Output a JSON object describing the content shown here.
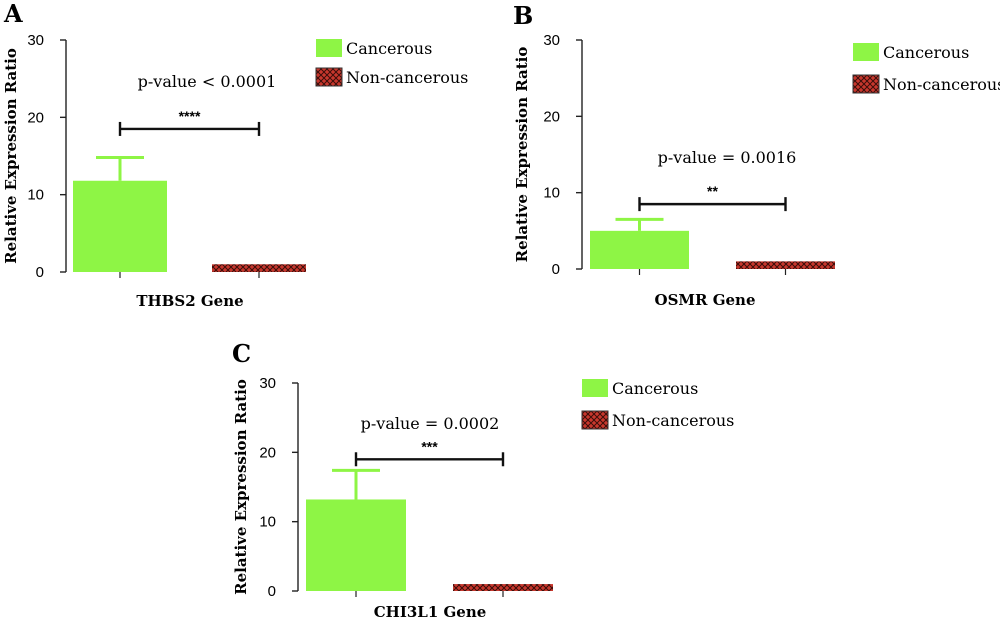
{
  "colors": {
    "cancerous": "#8ef545",
    "noncancerous": "#c8372d",
    "axis": "#222222"
  },
  "chart_data": [
    {
      "panel": "A",
      "type": "bar",
      "categories": [
        "Cancerous",
        "Non-cancerous"
      ],
      "values": [
        11.8,
        1.0
      ],
      "error_plus": [
        3.0,
        0.1
      ],
      "xlabel": "THBS2 Gene",
      "ylabel": "Relative Expression Ratio",
      "ylim": [
        0,
        30
      ],
      "yticks": [
        "0",
        "10",
        "20",
        "30"
      ],
      "annotation": "p-value < 0.0001",
      "stars": "****",
      "bracket_y": 18.5,
      "legend": [
        "Cancerous",
        "Non-cancerous"
      ],
      "legend_position": "top-right"
    },
    {
      "panel": "B",
      "type": "bar",
      "categories": [
        "Cancerous",
        "Non-cancerous"
      ],
      "values": [
        5.0,
        1.0
      ],
      "error_plus": [
        1.5,
        0.1
      ],
      "xlabel": "OSMR Gene",
      "ylabel": "Relative Expression Ratio",
      "ylim": [
        0,
        30
      ],
      "yticks": [
        "0",
        "10",
        "20",
        "30"
      ],
      "annotation": "p-value = 0.0016",
      "stars": "**",
      "bracket_y": 8.5,
      "legend": [
        "Cancerous",
        "Non-cancerous"
      ],
      "legend_position": "top-right"
    },
    {
      "panel": "C",
      "type": "bar",
      "categories": [
        "Cancerous",
        "Non-cancerous"
      ],
      "values": [
        13.2,
        1.0
      ],
      "error_plus": [
        4.2,
        0.1
      ],
      "xlabel": "CHI3L1 Gene",
      "ylabel": "Relative Expression Ratio",
      "ylim": [
        0,
        30
      ],
      "yticks": [
        "0",
        "10",
        "20",
        "30"
      ],
      "annotation": "p-value = 0.0002",
      "stars": "***",
      "bracket_y": 19.0,
      "legend": [
        "Cancerous",
        "Non-cancerous"
      ],
      "legend_position": "top-right"
    }
  ]
}
